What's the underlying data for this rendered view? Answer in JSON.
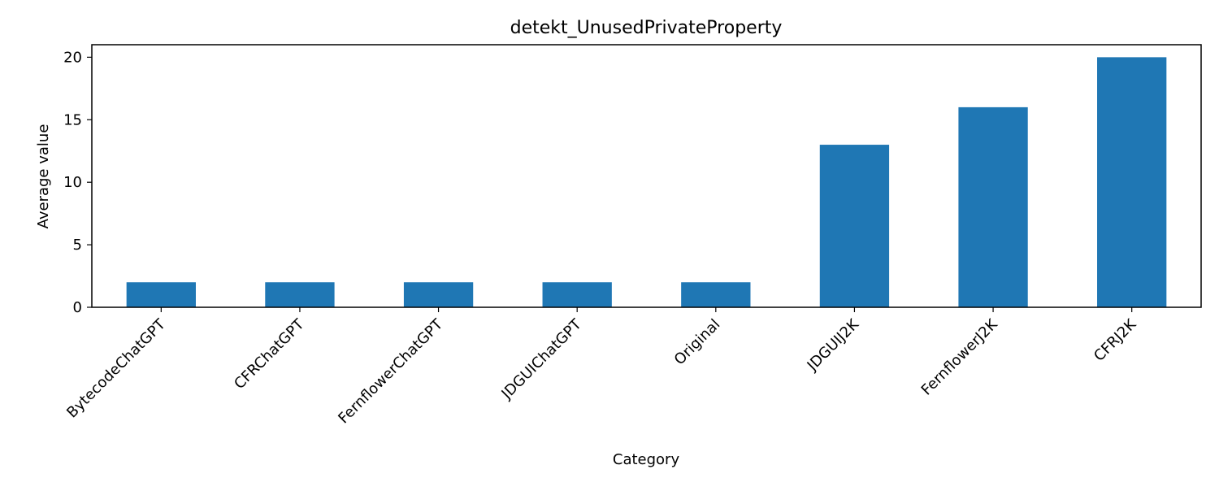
{
  "chart_data": {
    "type": "bar",
    "title": "detekt_UnusedPrivateProperty",
    "xlabel": "Category",
    "ylabel": "Average value",
    "categories": [
      "BytecodeChatGPT",
      "CFRChatGPT",
      "FernflowerChatGPT",
      "JDGUIChatGPT",
      "Original",
      "JDGUIJ2K",
      "FernflowerJ2K",
      "CFRJ2K"
    ],
    "values": [
      2,
      2,
      2,
      2,
      2,
      13,
      16,
      20
    ],
    "ylim": [
      0,
      21
    ],
    "yticks": [
      0,
      5,
      10,
      15,
      20
    ],
    "grid": false,
    "legend": "none",
    "bar_color": "#1f77b4"
  }
}
